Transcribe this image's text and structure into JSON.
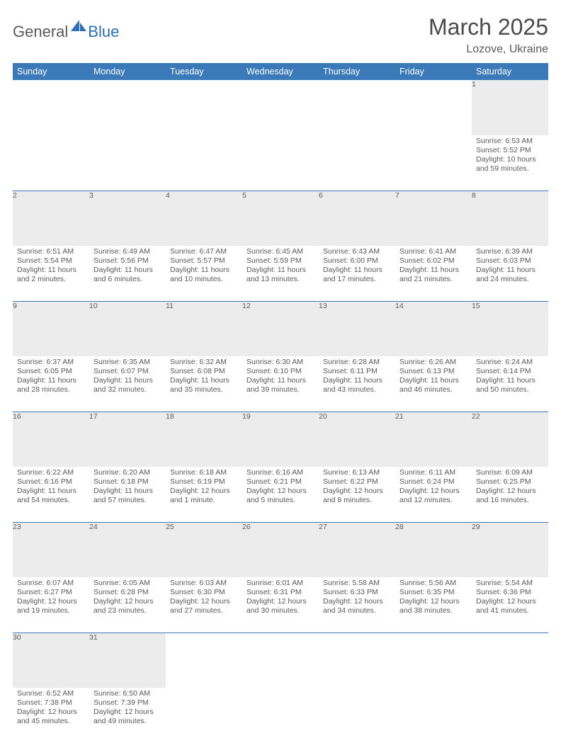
{
  "logo": {
    "general": "General",
    "blue": "Blue"
  },
  "title": "March 2025",
  "location": "Lozove, Ukraine",
  "weekdays": [
    "Sunday",
    "Monday",
    "Tuesday",
    "Wednesday",
    "Thursday",
    "Friday",
    "Saturday"
  ],
  "colors": {
    "header_bg": "#3a7ab8",
    "header_text": "#ffffff",
    "daynum_bg": "#ececec",
    "border": "#3a7ab8",
    "text": "#5a5a5a"
  },
  "weeks": [
    [
      null,
      null,
      null,
      null,
      null,
      null,
      {
        "n": "1",
        "sr": "Sunrise: 6:53 AM",
        "ss": "Sunset: 5:52 PM",
        "d1": "Daylight: 10 hours",
        "d2": "and 59 minutes."
      }
    ],
    [
      {
        "n": "2",
        "sr": "Sunrise: 6:51 AM",
        "ss": "Sunset: 5:54 PM",
        "d1": "Daylight: 11 hours",
        "d2": "and 2 minutes."
      },
      {
        "n": "3",
        "sr": "Sunrise: 6:49 AM",
        "ss": "Sunset: 5:56 PM",
        "d1": "Daylight: 11 hours",
        "d2": "and 6 minutes."
      },
      {
        "n": "4",
        "sr": "Sunrise: 6:47 AM",
        "ss": "Sunset: 5:57 PM",
        "d1": "Daylight: 11 hours",
        "d2": "and 10 minutes."
      },
      {
        "n": "5",
        "sr": "Sunrise: 6:45 AM",
        "ss": "Sunset: 5:59 PM",
        "d1": "Daylight: 11 hours",
        "d2": "and 13 minutes."
      },
      {
        "n": "6",
        "sr": "Sunrise: 6:43 AM",
        "ss": "Sunset: 6:00 PM",
        "d1": "Daylight: 11 hours",
        "d2": "and 17 minutes."
      },
      {
        "n": "7",
        "sr": "Sunrise: 6:41 AM",
        "ss": "Sunset: 6:02 PM",
        "d1": "Daylight: 11 hours",
        "d2": "and 21 minutes."
      },
      {
        "n": "8",
        "sr": "Sunrise: 6:39 AM",
        "ss": "Sunset: 6:03 PM",
        "d1": "Daylight: 11 hours",
        "d2": "and 24 minutes."
      }
    ],
    [
      {
        "n": "9",
        "sr": "Sunrise: 6:37 AM",
        "ss": "Sunset: 6:05 PM",
        "d1": "Daylight: 11 hours",
        "d2": "and 28 minutes."
      },
      {
        "n": "10",
        "sr": "Sunrise: 6:35 AM",
        "ss": "Sunset: 6:07 PM",
        "d1": "Daylight: 11 hours",
        "d2": "and 32 minutes."
      },
      {
        "n": "11",
        "sr": "Sunrise: 6:32 AM",
        "ss": "Sunset: 6:08 PM",
        "d1": "Daylight: 11 hours",
        "d2": "and 35 minutes."
      },
      {
        "n": "12",
        "sr": "Sunrise: 6:30 AM",
        "ss": "Sunset: 6:10 PM",
        "d1": "Daylight: 11 hours",
        "d2": "and 39 minutes."
      },
      {
        "n": "13",
        "sr": "Sunrise: 6:28 AM",
        "ss": "Sunset: 6:11 PM",
        "d1": "Daylight: 11 hours",
        "d2": "and 43 minutes."
      },
      {
        "n": "14",
        "sr": "Sunrise: 6:26 AM",
        "ss": "Sunset: 6:13 PM",
        "d1": "Daylight: 11 hours",
        "d2": "and 46 minutes."
      },
      {
        "n": "15",
        "sr": "Sunrise: 6:24 AM",
        "ss": "Sunset: 6:14 PM",
        "d1": "Daylight: 11 hours",
        "d2": "and 50 minutes."
      }
    ],
    [
      {
        "n": "16",
        "sr": "Sunrise: 6:22 AM",
        "ss": "Sunset: 6:16 PM",
        "d1": "Daylight: 11 hours",
        "d2": "and 54 minutes."
      },
      {
        "n": "17",
        "sr": "Sunrise: 6:20 AM",
        "ss": "Sunset: 6:18 PM",
        "d1": "Daylight: 11 hours",
        "d2": "and 57 minutes."
      },
      {
        "n": "18",
        "sr": "Sunrise: 6:18 AM",
        "ss": "Sunset: 6:19 PM",
        "d1": "Daylight: 12 hours",
        "d2": "and 1 minute."
      },
      {
        "n": "19",
        "sr": "Sunrise: 6:16 AM",
        "ss": "Sunset: 6:21 PM",
        "d1": "Daylight: 12 hours",
        "d2": "and 5 minutes."
      },
      {
        "n": "20",
        "sr": "Sunrise: 6:13 AM",
        "ss": "Sunset: 6:22 PM",
        "d1": "Daylight: 12 hours",
        "d2": "and 8 minutes."
      },
      {
        "n": "21",
        "sr": "Sunrise: 6:11 AM",
        "ss": "Sunset: 6:24 PM",
        "d1": "Daylight: 12 hours",
        "d2": "and 12 minutes."
      },
      {
        "n": "22",
        "sr": "Sunrise: 6:09 AM",
        "ss": "Sunset: 6:25 PM",
        "d1": "Daylight: 12 hours",
        "d2": "and 16 minutes."
      }
    ],
    [
      {
        "n": "23",
        "sr": "Sunrise: 6:07 AM",
        "ss": "Sunset: 6:27 PM",
        "d1": "Daylight: 12 hours",
        "d2": "and 19 minutes."
      },
      {
        "n": "24",
        "sr": "Sunrise: 6:05 AM",
        "ss": "Sunset: 6:28 PM",
        "d1": "Daylight: 12 hours",
        "d2": "and 23 minutes."
      },
      {
        "n": "25",
        "sr": "Sunrise: 6:03 AM",
        "ss": "Sunset: 6:30 PM",
        "d1": "Daylight: 12 hours",
        "d2": "and 27 minutes."
      },
      {
        "n": "26",
        "sr": "Sunrise: 6:01 AM",
        "ss": "Sunset: 6:31 PM",
        "d1": "Daylight: 12 hours",
        "d2": "and 30 minutes."
      },
      {
        "n": "27",
        "sr": "Sunrise: 5:58 AM",
        "ss": "Sunset: 6:33 PM",
        "d1": "Daylight: 12 hours",
        "d2": "and 34 minutes."
      },
      {
        "n": "28",
        "sr": "Sunrise: 5:56 AM",
        "ss": "Sunset: 6:35 PM",
        "d1": "Daylight: 12 hours",
        "d2": "and 38 minutes."
      },
      {
        "n": "29",
        "sr": "Sunrise: 5:54 AM",
        "ss": "Sunset: 6:36 PM",
        "d1": "Daylight: 12 hours",
        "d2": "and 41 minutes."
      }
    ],
    [
      {
        "n": "30",
        "sr": "Sunrise: 6:52 AM",
        "ss": "Sunset: 7:38 PM",
        "d1": "Daylight: 12 hours",
        "d2": "and 45 minutes."
      },
      {
        "n": "31",
        "sr": "Sunrise: 6:50 AM",
        "ss": "Sunset: 7:39 PM",
        "d1": "Daylight: 12 hours",
        "d2": "and 49 minutes."
      },
      null,
      null,
      null,
      null,
      null
    ]
  ]
}
